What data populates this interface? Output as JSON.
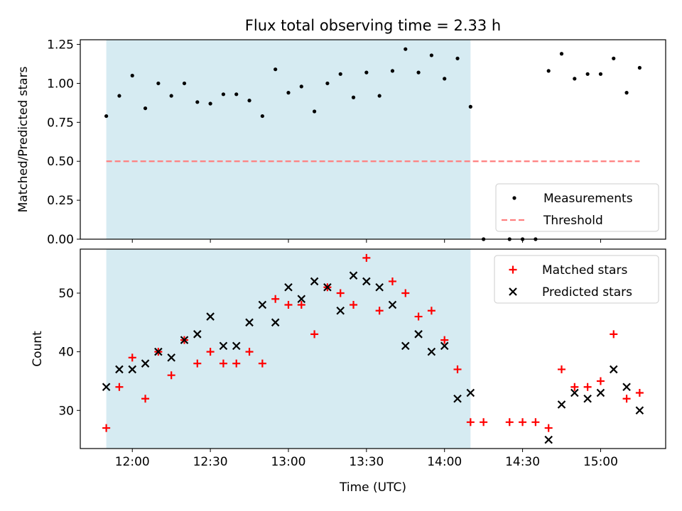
{
  "chart_data": {
    "type": "scatter",
    "title": "Flux total observing time = 2.33 h",
    "xlabel": "Time (UTC)",
    "x_ticks": [
      "12:00",
      "12:30",
      "13:00",
      "13:30",
      "14:00",
      "14:30",
      "15:00"
    ],
    "shaded_region": {
      "start": "11:50",
      "end": "14:10",
      "color": "#add8e6"
    },
    "panels": [
      {
        "ylabel": "Matched/Predicted stars",
        "ylim": [
          0,
          1.28
        ],
        "yticks": [
          "0.00",
          "0.25",
          "0.50",
          "0.75",
          "1.00",
          "1.25"
        ],
        "legend_position": "lower-right",
        "series": [
          {
            "name": "Measurements",
            "marker": "dot",
            "color": "#000000",
            "x": [
              "11:50",
              "11:55",
              "12:00",
              "12:05",
              "12:10",
              "12:15",
              "12:20",
              "12:25",
              "12:30",
              "12:35",
              "12:40",
              "12:45",
              "12:50",
              "12:55",
              "13:00",
              "13:05",
              "13:10",
              "13:15",
              "13:20",
              "13:25",
              "13:30",
              "13:35",
              "13:40",
              "13:45",
              "13:50",
              "13:55",
              "14:00",
              "14:05",
              "14:10",
              "14:15",
              "14:25",
              "14:30",
              "14:35",
              "14:40",
              "14:45",
              "14:50",
              "14:55",
              "15:00",
              "15:05",
              "15:10",
              "15:15"
            ],
            "y": [
              0.79,
              0.92,
              1.05,
              0.84,
              1.0,
              0.92,
              1.0,
              0.88,
              0.87,
              0.93,
              0.93,
              0.89,
              0.79,
              1.09,
              0.94,
              0.98,
              0.82,
              1.0,
              1.06,
              0.91,
              1.07,
              0.92,
              1.08,
              1.22,
              1.07,
              1.18,
              1.03,
              1.16,
              0.85,
              0.0,
              0.0,
              0.0,
              0.0,
              1.08,
              1.19,
              1.03,
              1.06,
              1.06,
              1.16,
              0.94,
              1.1
            ]
          },
          {
            "name": "Threshold",
            "style": "dashed-line",
            "color": "#ff7f7f",
            "x": [
              "11:50",
              "15:15"
            ],
            "y": [
              0.5,
              0.5
            ]
          }
        ]
      },
      {
        "ylabel": "Count",
        "ylim": [
          23.5,
          57.5
        ],
        "yticks": [
          "30",
          "40",
          "50"
        ],
        "legend_position": "upper-right",
        "series": [
          {
            "name": "Matched stars",
            "marker": "plus",
            "color": "#ff0000",
            "x": [
              "11:50",
              "11:55",
              "12:00",
              "12:05",
              "12:10",
              "12:15",
              "12:20",
              "12:25",
              "12:30",
              "12:35",
              "12:40",
              "12:45",
              "12:50",
              "12:55",
              "13:00",
              "13:05",
              "13:10",
              "13:15",
              "13:20",
              "13:25",
              "13:30",
              "13:35",
              "13:40",
              "13:45",
              "13:50",
              "13:55",
              "14:00",
              "14:05",
              "14:10",
              "14:15",
              "14:25",
              "14:30",
              "14:35",
              "14:40",
              "14:45",
              "14:50",
              "14:55",
              "15:00",
              "15:05",
              "15:10",
              "15:15"
            ],
            "y": [
              27,
              34,
              39,
              32,
              40,
              36,
              42,
              38,
              40,
              38,
              38,
              40,
              38,
              49,
              48,
              48,
              43,
              51,
              50,
              48,
              56,
              47,
              52,
              50,
              46,
              47,
              42,
              37,
              28,
              28,
              28,
              28,
              28,
              27,
              37,
              34,
              34,
              35,
              43,
              32,
              33
            ]
          },
          {
            "name": "Predicted stars",
            "marker": "x",
            "color": "#000000",
            "x": [
              "11:50",
              "11:55",
              "12:00",
              "12:05",
              "12:10",
              "12:15",
              "12:20",
              "12:25",
              "12:30",
              "12:35",
              "12:40",
              "12:45",
              "12:50",
              "12:55",
              "13:00",
              "13:05",
              "13:10",
              "13:15",
              "13:20",
              "13:25",
              "13:30",
              "13:35",
              "13:40",
              "13:45",
              "13:50",
              "13:55",
              "14:00",
              "14:05",
              "14:10",
              "14:40",
              "14:45",
              "14:50",
              "14:55",
              "15:00",
              "15:05",
              "15:10",
              "15:15"
            ],
            "y": [
              34,
              37,
              37,
              38,
              40,
              39,
              42,
              43,
              46,
              41,
              41,
              45,
              48,
              45,
              51,
              49,
              52,
              51,
              47,
              53,
              52,
              51,
              48,
              41,
              43,
              40,
              41,
              32,
              33,
              25,
              31,
              33,
              32,
              33,
              37,
              34,
              30
            ]
          }
        ]
      }
    ]
  }
}
